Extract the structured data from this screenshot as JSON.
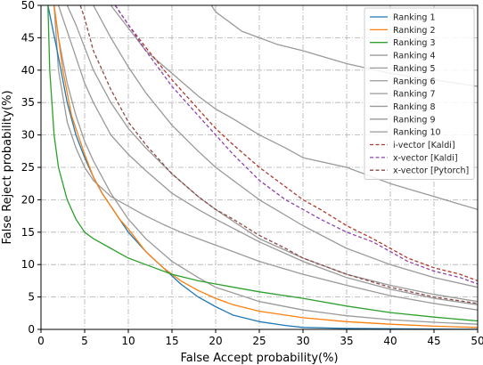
{
  "chart_data": {
    "type": "line",
    "title": "",
    "xlabel": "False Accept probability(%)",
    "ylabel": "False Reject probability(%)",
    "xlim": [
      0,
      50
    ],
    "ylim": [
      0,
      50
    ],
    "xticks": [
      0,
      5,
      10,
      15,
      20,
      25,
      30,
      35,
      40,
      45,
      50
    ],
    "yticks": [
      0,
      5,
      10,
      15,
      20,
      25,
      30,
      35,
      40,
      45,
      50
    ],
    "grid": true,
    "grid_style": "dash-dot",
    "legend_position": "top-right",
    "series": [
      {
        "name": "Ranking 1",
        "color": "#1f77b4",
        "dash": "solid",
        "x": [
          0.8,
          2,
          3,
          4,
          5,
          6,
          7,
          8,
          9,
          10,
          12,
          14,
          16,
          18,
          20,
          22,
          25,
          28,
          30,
          35,
          40,
          45,
          50
        ],
        "y": [
          50,
          42,
          35,
          30,
          26.5,
          23.5,
          21,
          19,
          17,
          15,
          12,
          9.5,
          7,
          5,
          3.5,
          2.2,
          1.2,
          0.6,
          0.3,
          0.15,
          0.1,
          0.05,
          0.02
        ]
      },
      {
        "name": "Ranking 2",
        "color": "#ff7f0e",
        "dash": "solid",
        "x": [
          1.5,
          2.5,
          3.5,
          4.5,
          5,
          6,
          7,
          8,
          9,
          10,
          12,
          14,
          16,
          18,
          20,
          22,
          25,
          30,
          35,
          40,
          45,
          50
        ],
        "y": [
          50,
          40,
          33,
          29,
          27,
          23.5,
          21,
          19,
          17,
          15.5,
          12,
          9.5,
          7.5,
          6,
          4.8,
          3.8,
          2.8,
          1.8,
          1.2,
          0.8,
          0.5,
          0.3
        ]
      },
      {
        "name": "Ranking 3",
        "color": "#2ca02c",
        "dash": "solid",
        "x": [
          0.8,
          1,
          1.5,
          2,
          3,
          4,
          5,
          6,
          8,
          10,
          12,
          15,
          18,
          20,
          25,
          30,
          35,
          40,
          45,
          50
        ],
        "y": [
          50,
          40,
          30,
          25,
          20,
          17,
          15,
          14,
          12.5,
          11,
          10,
          8.5,
          7.5,
          7,
          5.8,
          4.8,
          3.6,
          2.6,
          1.9,
          1.3
        ]
      },
      {
        "name": "Ranking 4",
        "color": "#9a9a9a",
        "dash": "solid",
        "x": [
          1.5,
          2,
          3,
          4,
          5,
          6,
          8,
          10,
          12,
          15,
          18,
          20,
          25,
          30,
          35,
          40,
          45,
          50
        ],
        "y": [
          50,
          45,
          38,
          33,
          29,
          26,
          21,
          17,
          14,
          10.5,
          8,
          6.5,
          4.3,
          3,
          2.1,
          1.5,
          1.1,
          0.8
        ]
      },
      {
        "name": "Ranking 5",
        "color": "#9a9a9a",
        "dash": "solid",
        "x": [
          19.5,
          20,
          21,
          22,
          23,
          25,
          27,
          30,
          35,
          40,
          45,
          50
        ],
        "y": [
          50,
          49,
          48,
          47,
          46,
          45,
          44,
          43,
          41,
          39.5,
          38.5,
          37.5
        ]
      },
      {
        "name": "Ranking 6",
        "color": "#9a9a9a",
        "dash": "solid",
        "x": [
          8,
          10,
          12,
          15,
          18,
          20,
          22,
          25,
          28,
          30,
          35,
          40,
          45,
          50
        ],
        "y": [
          50,
          46.5,
          43,
          39.5,
          36,
          34,
          32.5,
          30,
          28,
          26.5,
          25,
          22.5,
          20.5,
          18.5
        ]
      },
      {
        "name": "Ranking 7",
        "color": "#9a9a9a",
        "dash": "solid",
        "x": [
          2,
          3,
          4,
          5,
          6,
          8,
          10,
          12,
          15,
          18,
          20,
          25,
          30,
          35,
          40,
          45,
          50
        ],
        "y": [
          50,
          46,
          42,
          38,
          35,
          30,
          27,
          24.5,
          21,
          18.5,
          17,
          13.5,
          10.5,
          8,
          6.2,
          4.8,
          3.8
        ]
      },
      {
        "name": "Ranking 8",
        "color": "#9a9a9a",
        "dash": "solid",
        "x": [
          3,
          4,
          5,
          6,
          8,
          10,
          12,
          15,
          18,
          20,
          25,
          30,
          35,
          40,
          45,
          50
        ],
        "y": [
          50,
          47,
          43.5,
          40,
          35,
          31,
          28,
          24,
          20.5,
          18.5,
          14,
          11,
          8.5,
          6.8,
          5.4,
          4.3
        ]
      },
      {
        "name": "Ranking 9",
        "color": "#9a9a9a",
        "dash": "solid",
        "x": [
          6,
          8,
          10,
          12,
          15,
          18,
          20,
          25,
          30,
          35,
          40,
          45,
          50
        ],
        "y": [
          50,
          45,
          40.5,
          36.5,
          31.5,
          27.5,
          25,
          20,
          16,
          12.5,
          10,
          8,
          6.5
        ]
      },
      {
        "name": "Ranking 10",
        "color": "#9a9a9a",
        "dash": "solid",
        "x": [
          1.5,
          2,
          3,
          4,
          5,
          6,
          8,
          10,
          12,
          14,
          16,
          18,
          20,
          25,
          30,
          35,
          40,
          45,
          50
        ],
        "y": [
          50,
          40,
          32,
          28,
          25,
          23,
          20.5,
          19,
          17.5,
          16.2,
          15,
          14,
          13,
          10.5,
          8.5,
          6.8,
          5.2,
          4,
          3
        ]
      },
      {
        "name": "i-vector [Kaldi]",
        "color": "#b03a2e",
        "dash": "dashed",
        "x": [
          8.5,
          10,
          12,
          15,
          18,
          20,
          22,
          25,
          28,
          30,
          32,
          35,
          38,
          40,
          42,
          45,
          48,
          50
        ],
        "y": [
          50,
          47,
          43.5,
          38.5,
          34,
          31,
          28.5,
          25,
          22,
          20,
          18.5,
          16,
          14,
          12.5,
          11,
          9.5,
          8.5,
          7.5
        ]
      },
      {
        "name": "x-vector [Kaldi]",
        "color": "#8e44ad",
        "dash": "dashed",
        "x": [
          8.5,
          10,
          12,
          15,
          18,
          20,
          22,
          25,
          28,
          30,
          32,
          35,
          38,
          40,
          42,
          45,
          48,
          50
        ],
        "y": [
          50,
          47,
          43,
          37.5,
          33,
          30,
          27,
          23,
          20,
          18.5,
          17,
          15,
          13.5,
          12,
          10.5,
          9,
          8,
          7
        ]
      },
      {
        "name": "x-vector [Pytorch]",
        "color": "#8e4a48",
        "dash": "dashed",
        "x": [
          4.5,
          5,
          6,
          8,
          10,
          12,
          15,
          18,
          20,
          22,
          25,
          28,
          30,
          35,
          40,
          45,
          50
        ],
        "y": [
          50,
          48,
          43,
          37,
          32,
          28.5,
          24,
          20.5,
          18.5,
          17,
          14.5,
          12.5,
          11,
          8.5,
          6.5,
          5,
          4
        ]
      }
    ]
  }
}
